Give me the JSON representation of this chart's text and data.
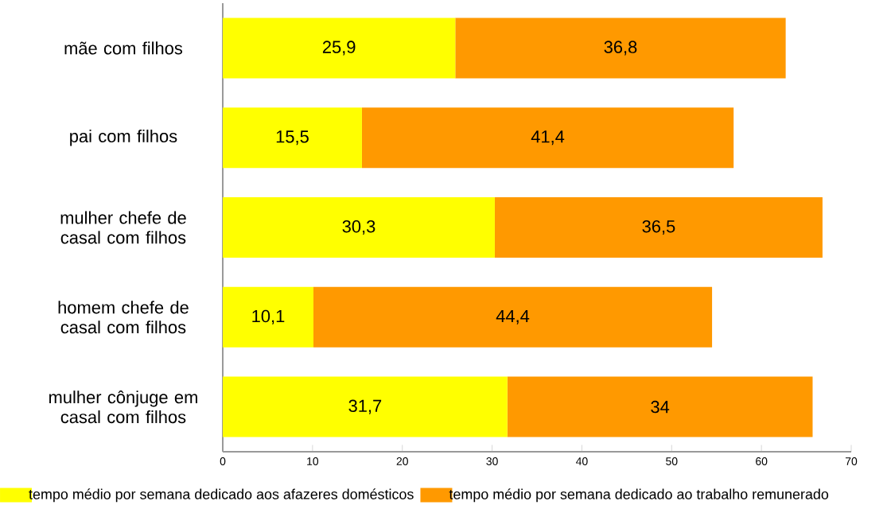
{
  "chart_data": {
    "type": "bar",
    "orientation": "horizontal",
    "stacked": true,
    "categories": [
      "mãe com filhos",
      "pai com filhos",
      "mulher chefe de casal com filhos",
      "homem chefe de casal com filhos",
      "mulher cônjuge em casal com filhos"
    ],
    "series": [
      {
        "name": "tempo médio por semana dedicado aos afazeres domésticos",
        "color": "#ffff00",
        "values": [
          25.9,
          15.5,
          30.3,
          10.1,
          31.7
        ],
        "value_labels": [
          "25,9",
          "15,5",
          "30,3",
          "10,1",
          "31,7"
        ]
      },
      {
        "name": "tempo médio por semana dedicado ao trabalho remunerado",
        "color": "#ff9900",
        "values": [
          36.8,
          41.4,
          36.5,
          44.4,
          34
        ],
        "value_labels": [
          "36,8",
          "41,4",
          "36,5",
          "44,4",
          "34"
        ]
      }
    ],
    "xlim": [
      0,
      70
    ],
    "xticks": [
      0,
      10,
      20,
      30,
      40,
      50,
      60,
      70
    ],
    "legend": "bottom"
  }
}
